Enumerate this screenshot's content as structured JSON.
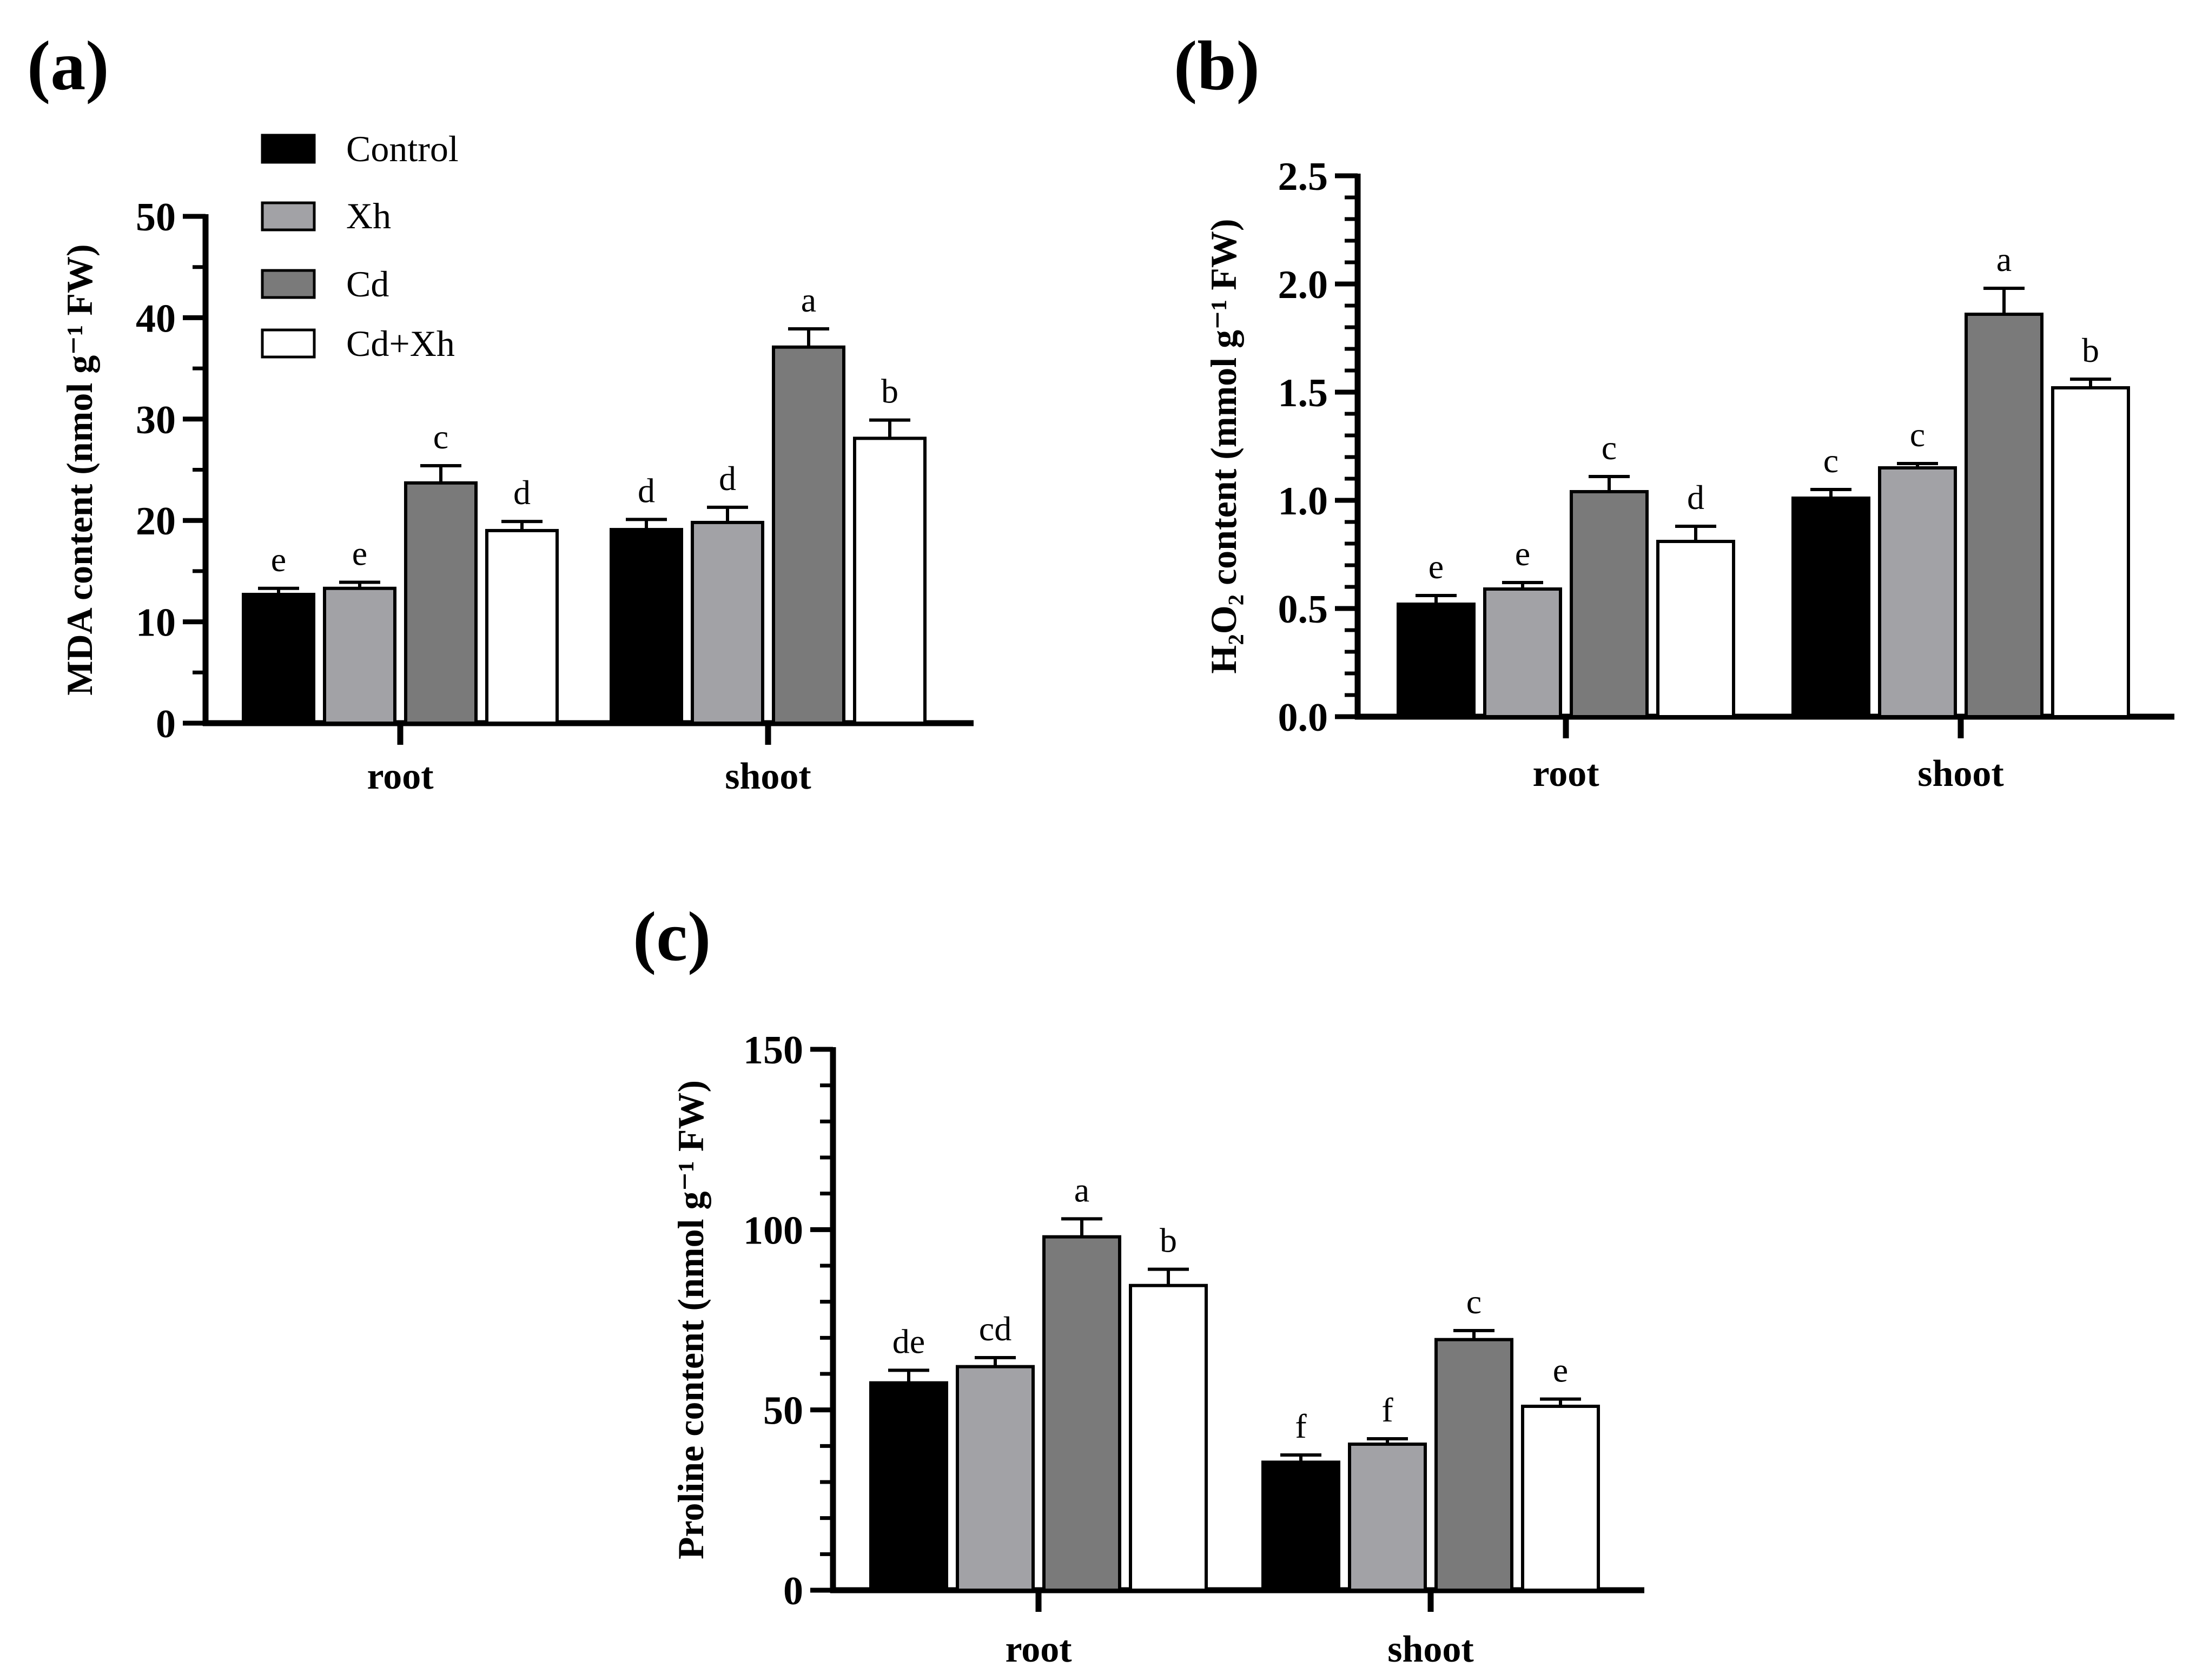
{
  "figure": {
    "panel_labels": [
      "(a)",
      "(b)",
      "(c)"
    ]
  },
  "legend": {
    "items": [
      {
        "name": "Control",
        "color": "#000000"
      },
      {
        "name": "Xh",
        "color": "#a2a2a6"
      },
      {
        "name": "Cd",
        "color": "#7a7a7a"
      },
      {
        "name": "Cd+Xh",
        "color": "#ffffff"
      }
    ]
  },
  "chart_data": [
    {
      "type": "bar",
      "panel": "(a)",
      "title": "",
      "categories": [
        "root",
        "shoot"
      ],
      "ylabel": "MDA content (nmol g⁻¹ FW)",
      "ylim": [
        0,
        50
      ],
      "yticks": [
        0,
        10,
        20,
        30,
        40,
        50
      ],
      "ytick_labels": [
        "0",
        "10",
        "20",
        "30",
        "40",
        "50"
      ],
      "minor_ticks": 1,
      "series": [
        {
          "name": "Control",
          "values": [
            12.7,
            19.1
          ],
          "errors": [
            0.6,
            1.0
          ],
          "letters": [
            "e",
            "d"
          ]
        },
        {
          "name": "Xh",
          "values": [
            13.3,
            19.8
          ],
          "errors": [
            0.6,
            1.5
          ],
          "letters": [
            "e",
            "d"
          ]
        },
        {
          "name": "Cd",
          "values": [
            23.7,
            37.1
          ],
          "errors": [
            1.7,
            1.8
          ],
          "letters": [
            "c",
            "a"
          ]
        },
        {
          "name": "Cd+Xh",
          "values": [
            19.0,
            28.1
          ],
          "errors": [
            0.9,
            1.8
          ],
          "letters": [
            "d",
            "b"
          ]
        }
      ]
    },
    {
      "type": "bar",
      "panel": "(b)",
      "title": "",
      "categories": [
        "root",
        "shoot"
      ],
      "ylabel": "H₂O₂ content (mmol g⁻¹ FW)",
      "ylim": [
        0,
        2.5
      ],
      "yticks": [
        0,
        0.5,
        1.0,
        1.5,
        2.0,
        2.5
      ],
      "ytick_labels": [
        "0.0",
        "0.5",
        "1.0",
        "1.5",
        "2.0",
        "2.5"
      ],
      "minor_ticks": 4,
      "series": [
        {
          "name": "Control",
          "values": [
            0.52,
            1.01
          ],
          "errors": [
            0.04,
            0.04
          ],
          "letters": [
            "e",
            "c"
          ]
        },
        {
          "name": "Xh",
          "values": [
            0.59,
            1.15
          ],
          "errors": [
            0.03,
            0.02
          ],
          "letters": [
            "e",
            "c"
          ]
        },
        {
          "name": "Cd",
          "values": [
            1.04,
            1.86
          ],
          "errors": [
            0.07,
            0.12
          ],
          "letters": [
            "c",
            "a"
          ]
        },
        {
          "name": "Cd+Xh",
          "values": [
            0.81,
            1.52
          ],
          "errors": [
            0.07,
            0.04
          ],
          "letters": [
            "d",
            "b"
          ]
        }
      ]
    },
    {
      "type": "bar",
      "panel": "(c)",
      "title": "",
      "categories": [
        "root",
        "shoot"
      ],
      "ylabel": "Proline content (nmol g⁻¹ FW)",
      "ylim": [
        0,
        150
      ],
      "yticks": [
        0,
        50,
        100,
        150
      ],
      "ytick_labels": [
        "0",
        "50",
        "100",
        "150"
      ],
      "minor_ticks": 4,
      "series": [
        {
          "name": "Control",
          "values": [
            57.5,
            35.5
          ],
          "errors": [
            3.5,
            2.0
          ],
          "letters": [
            "de",
            "f"
          ]
        },
        {
          "name": "Xh",
          "values": [
            62.0,
            40.5
          ],
          "errors": [
            2.5,
            1.5
          ],
          "letters": [
            "cd",
            "f"
          ]
        },
        {
          "name": "Cd",
          "values": [
            98.0,
            69.5
          ],
          "errors": [
            5.0,
            2.5
          ],
          "letters": [
            "a",
            "c"
          ]
        },
        {
          "name": "Cd+Xh",
          "values": [
            84.5,
            51.0
          ],
          "errors": [
            4.5,
            2.0
          ],
          "letters": [
            "b",
            "e"
          ]
        }
      ]
    }
  ]
}
